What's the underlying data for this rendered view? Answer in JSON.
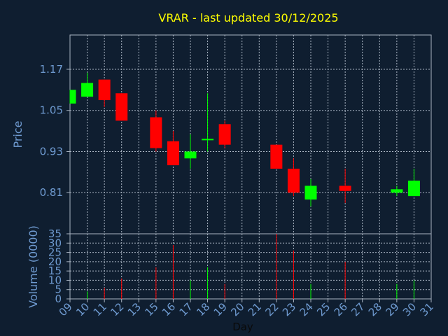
{
  "chart_data": {
    "type": "candlestick",
    "title": "VRAR - last updated 30/12/2025",
    "ylabel_price": "Price",
    "ylabel_volume": "Volume (0000)",
    "xlabel": "Day",
    "price_yticks": [
      "1.17",
      "1.05",
      "0.93",
      "0.81"
    ],
    "price_ylim": [
      0.69,
      1.27
    ],
    "volume_yticks": [
      "0",
      "5",
      "10",
      "15",
      "20",
      "25",
      "30",
      "35"
    ],
    "volume_ylim": [
      0,
      35
    ],
    "x_ticks": [
      "09",
      "10",
      "11",
      "12",
      "13",
      "15",
      "16",
      "17",
      "18",
      "19",
      "20",
      "21",
      "22",
      "23",
      "24",
      "25",
      "26",
      "27",
      "28",
      "29",
      "30",
      "31"
    ],
    "colors": {
      "up": "#00ff00",
      "down": "#ff0000",
      "title": "#ffff00",
      "axis_text": "#6f9bd1",
      "grid": "#a9b4c2",
      "background": "#0f1e30"
    },
    "candles": [
      {
        "day": "09",
        "open": 1.07,
        "high": 1.11,
        "low": 1.07,
        "close": 1.11,
        "volume": 0
      },
      {
        "day": "10",
        "open": 1.09,
        "high": 1.16,
        "low": 1.09,
        "close": 1.13,
        "volume": 4
      },
      {
        "day": "11",
        "open": 1.14,
        "high": 1.14,
        "low": 1.06,
        "close": 1.08,
        "volume": 6
      },
      {
        "day": "12",
        "open": 1.1,
        "high": 1.1,
        "low": 1.02,
        "close": 1.02,
        "volume": 11
      },
      {
        "day": "15",
        "open": 1.03,
        "high": 1.05,
        "low": 0.93,
        "close": 0.94,
        "volume": 17
      },
      {
        "day": "16",
        "open": 0.96,
        "high": 0.99,
        "low": 0.89,
        "close": 0.89,
        "volume": 29
      },
      {
        "day": "17",
        "open": 0.91,
        "high": 0.98,
        "low": 0.88,
        "close": 0.93,
        "volume": 10
      },
      {
        "day": "18",
        "open": 0.965,
        "high": 1.1,
        "low": 0.93,
        "close": 0.967,
        "volume": 17
      },
      {
        "day": "19",
        "open": 1.01,
        "high": 1.02,
        "low": 0.94,
        "close": 0.95,
        "volume": 8
      },
      {
        "day": "22",
        "open": 0.95,
        "high": 0.95,
        "low": 0.88,
        "close": 0.88,
        "volume": 35
      },
      {
        "day": "23",
        "open": 0.88,
        "high": 0.91,
        "low": 0.8,
        "close": 0.81,
        "volume": 26
      },
      {
        "day": "24",
        "open": 0.79,
        "high": 0.85,
        "low": 0.77,
        "close": 0.83,
        "volume": 8
      },
      {
        "day": "26",
        "open": 0.83,
        "high": 0.88,
        "low": 0.78,
        "close": 0.815,
        "volume": 20
      },
      {
        "day": "29",
        "open": 0.81,
        "high": 0.83,
        "low": 0.8,
        "close": 0.82,
        "volume": 8
      },
      {
        "day": "30",
        "open": 0.8,
        "high": 0.88,
        "low": 0.8,
        "close": 0.845,
        "volume": 10
      }
    ]
  }
}
